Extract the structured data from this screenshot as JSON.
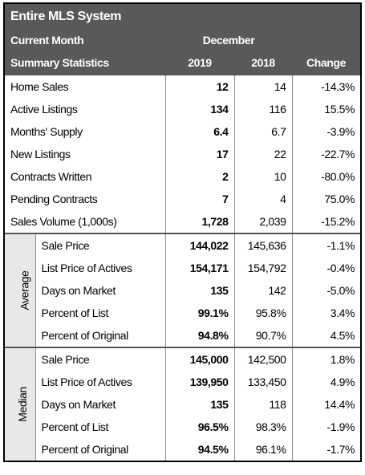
{
  "header": {
    "title": "Entire MLS System",
    "period_label": "Current Month",
    "period": "December",
    "stats_label": "Summary Statistics",
    "columns": [
      "2019",
      "2018",
      "Change"
    ]
  },
  "summary": {
    "rows": [
      [
        "Home Sales",
        "12",
        "14",
        "-14.3%"
      ],
      [
        "Active Listings",
        "134",
        "116",
        "15.5%"
      ],
      [
        "Months' Supply",
        "6.4",
        "6.7",
        "-3.9%"
      ],
      [
        "New Listings",
        "17",
        "22",
        "-22.7%"
      ],
      [
        "Contracts Written",
        "2",
        "10",
        "-80.0%"
      ],
      [
        "Pending Contracts",
        "7",
        "4",
        "75.0%"
      ],
      [
        "Sales Volume (1,000s)",
        "1,728",
        "2,039",
        "-15.2%"
      ]
    ]
  },
  "average": {
    "label": "Average",
    "rows": [
      [
        "Sale Price",
        "144,022",
        "145,636",
        "-1.1%"
      ],
      [
        "List Price of Actives",
        "154,171",
        "154,792",
        "-0.4%"
      ],
      [
        "Days on Market",
        "135",
        "142",
        "-5.0%"
      ],
      [
        "Percent of List",
        "99.1%",
        "95.8%",
        "3.4%"
      ],
      [
        "Percent of Original",
        "94.8%",
        "90.7%",
        "4.5%"
      ]
    ]
  },
  "median": {
    "label": "Median",
    "rows": [
      [
        "Sale Price",
        "145,000",
        "142,500",
        "1.8%"
      ],
      [
        "List Price of Actives",
        "139,950",
        "133,450",
        "4.9%"
      ],
      [
        "Days on Market",
        "135",
        "118",
        "14.4%"
      ],
      [
        "Percent of List",
        "96.5%",
        "98.3%",
        "-1.9%"
      ],
      [
        "Percent of Original",
        "94.5%",
        "96.1%",
        "-1.7%"
      ]
    ]
  }
}
